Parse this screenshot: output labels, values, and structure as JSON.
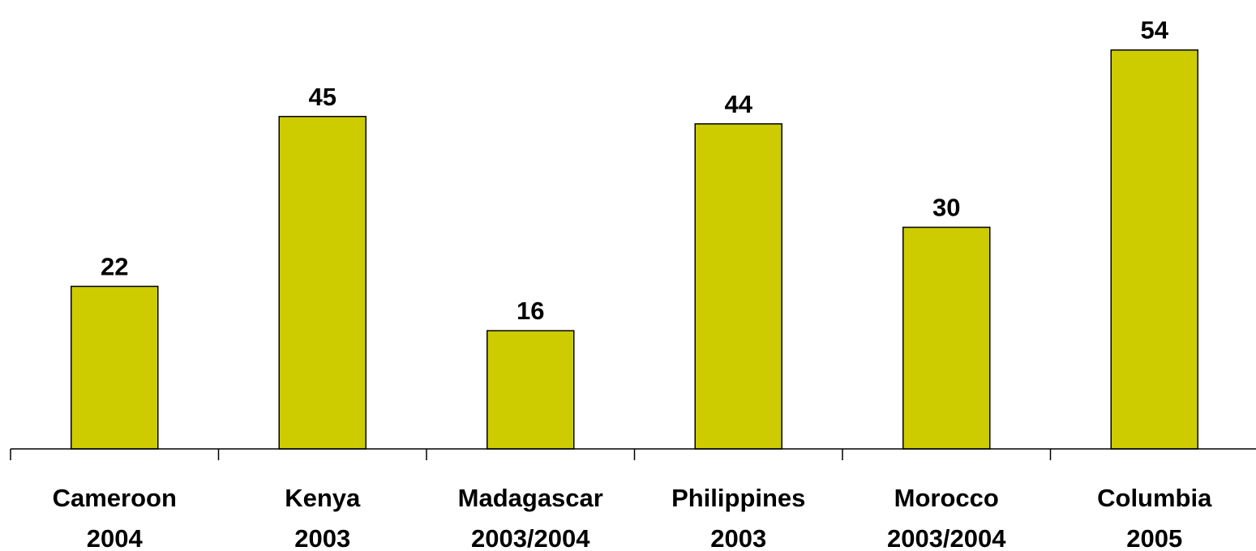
{
  "chart_data": {
    "type": "bar",
    "categories": [
      [
        "Cameroon",
        "2004"
      ],
      [
        "Kenya",
        "2003"
      ],
      [
        "Madagascar",
        "2003/2004"
      ],
      [
        "Philippines",
        "2003"
      ],
      [
        "Morocco",
        "2003/2004"
      ],
      [
        "Columbia",
        "2005"
      ]
    ],
    "values": [
      22,
      45,
      16,
      44,
      30,
      54
    ],
    "color": "#cccc00",
    "ylim": [
      0,
      60
    ]
  }
}
